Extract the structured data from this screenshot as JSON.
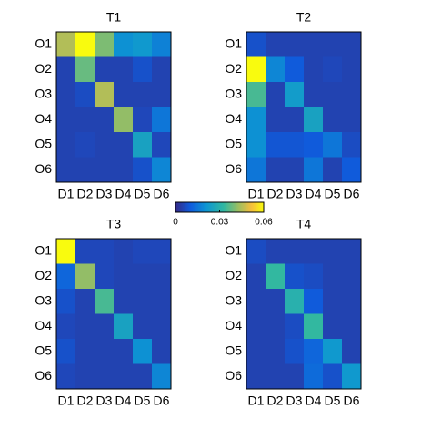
{
  "chart_data": [
    {
      "type": "heatmap",
      "title": "T1",
      "x": [
        "D1",
        "D2",
        "D3",
        "D4",
        "D5",
        "D6"
      ],
      "y": [
        "O1",
        "O2",
        "O3",
        "O4",
        "O5",
        "O6"
      ],
      "values": [
        [
          0.045,
          0.06,
          0.04,
          0.02,
          0.022,
          0.017
        ],
        [
          0.005,
          0.038,
          0.005,
          0.005,
          0.008,
          0.005
        ],
        [
          0.005,
          0.007,
          0.045,
          0.005,
          0.005,
          0.005
        ],
        [
          0.005,
          0.005,
          0.005,
          0.042,
          0.006,
          0.015
        ],
        [
          0.005,
          0.006,
          0.005,
          0.005,
          0.025,
          0.006
        ],
        [
          0.005,
          0.005,
          0.005,
          0.005,
          0.008,
          0.018
        ]
      ]
    },
    {
      "type": "heatmap",
      "title": "T2",
      "x": [
        "D1",
        "D2",
        "D3",
        "D4",
        "D5",
        "D6"
      ],
      "y": [
        "O1",
        "O2",
        "O3",
        "O4",
        "O5",
        "O6"
      ],
      "values": [
        [
          0.008,
          0.005,
          0.005,
          0.005,
          0.005,
          0.005
        ],
        [
          0.06,
          0.018,
          0.01,
          0.005,
          0.006,
          0.005
        ],
        [
          0.035,
          0.005,
          0.023,
          0.005,
          0.005,
          0.005
        ],
        [
          0.02,
          0.005,
          0.005,
          0.025,
          0.005,
          0.005
        ],
        [
          0.02,
          0.009,
          0.009,
          0.01,
          0.015,
          0.007
        ],
        [
          0.015,
          0.005,
          0.005,
          0.015,
          0.005,
          0.01
        ]
      ]
    },
    {
      "type": "heatmap",
      "title": "T3",
      "x": [
        "D1",
        "D2",
        "D3",
        "D4",
        "D5",
        "D6"
      ],
      "y": [
        "O1",
        "O2",
        "O3",
        "O4",
        "O5",
        "O6"
      ],
      "values": [
        [
          0.06,
          0.006,
          0.006,
          0.005,
          0.006,
          0.006
        ],
        [
          0.012,
          0.042,
          0.006,
          0.005,
          0.005,
          0.005
        ],
        [
          0.008,
          0.005,
          0.035,
          0.005,
          0.005,
          0.005
        ],
        [
          0.006,
          0.005,
          0.005,
          0.025,
          0.005,
          0.005
        ],
        [
          0.008,
          0.005,
          0.005,
          0.005,
          0.02,
          0.005
        ],
        [
          0.006,
          0.005,
          0.005,
          0.005,
          0.005,
          0.018
        ]
      ]
    },
    {
      "type": "heatmap",
      "title": "T4",
      "x": [
        "D1",
        "D2",
        "D3",
        "D4",
        "D5",
        "D6"
      ],
      "y": [
        "O1",
        "O2",
        "O3",
        "O4",
        "O5",
        "O6"
      ],
      "values": [
        [
          0.007,
          0.005,
          0.005,
          0.005,
          0.005,
          0.005
        ],
        [
          0.005,
          0.033,
          0.008,
          0.007,
          0.005,
          0.005
        ],
        [
          0.005,
          0.005,
          0.03,
          0.01,
          0.005,
          0.005
        ],
        [
          0.005,
          0.005,
          0.007,
          0.033,
          0.005,
          0.005
        ],
        [
          0.005,
          0.005,
          0.008,
          0.012,
          0.022,
          0.005
        ],
        [
          0.005,
          0.005,
          0.005,
          0.013,
          0.008,
          0.022
        ]
      ]
    }
  ],
  "colorbar": {
    "colormap": "parula",
    "zlim": [
      0,
      0.06
    ],
    "zticks": [
      0,
      0.03,
      0.06
    ]
  }
}
